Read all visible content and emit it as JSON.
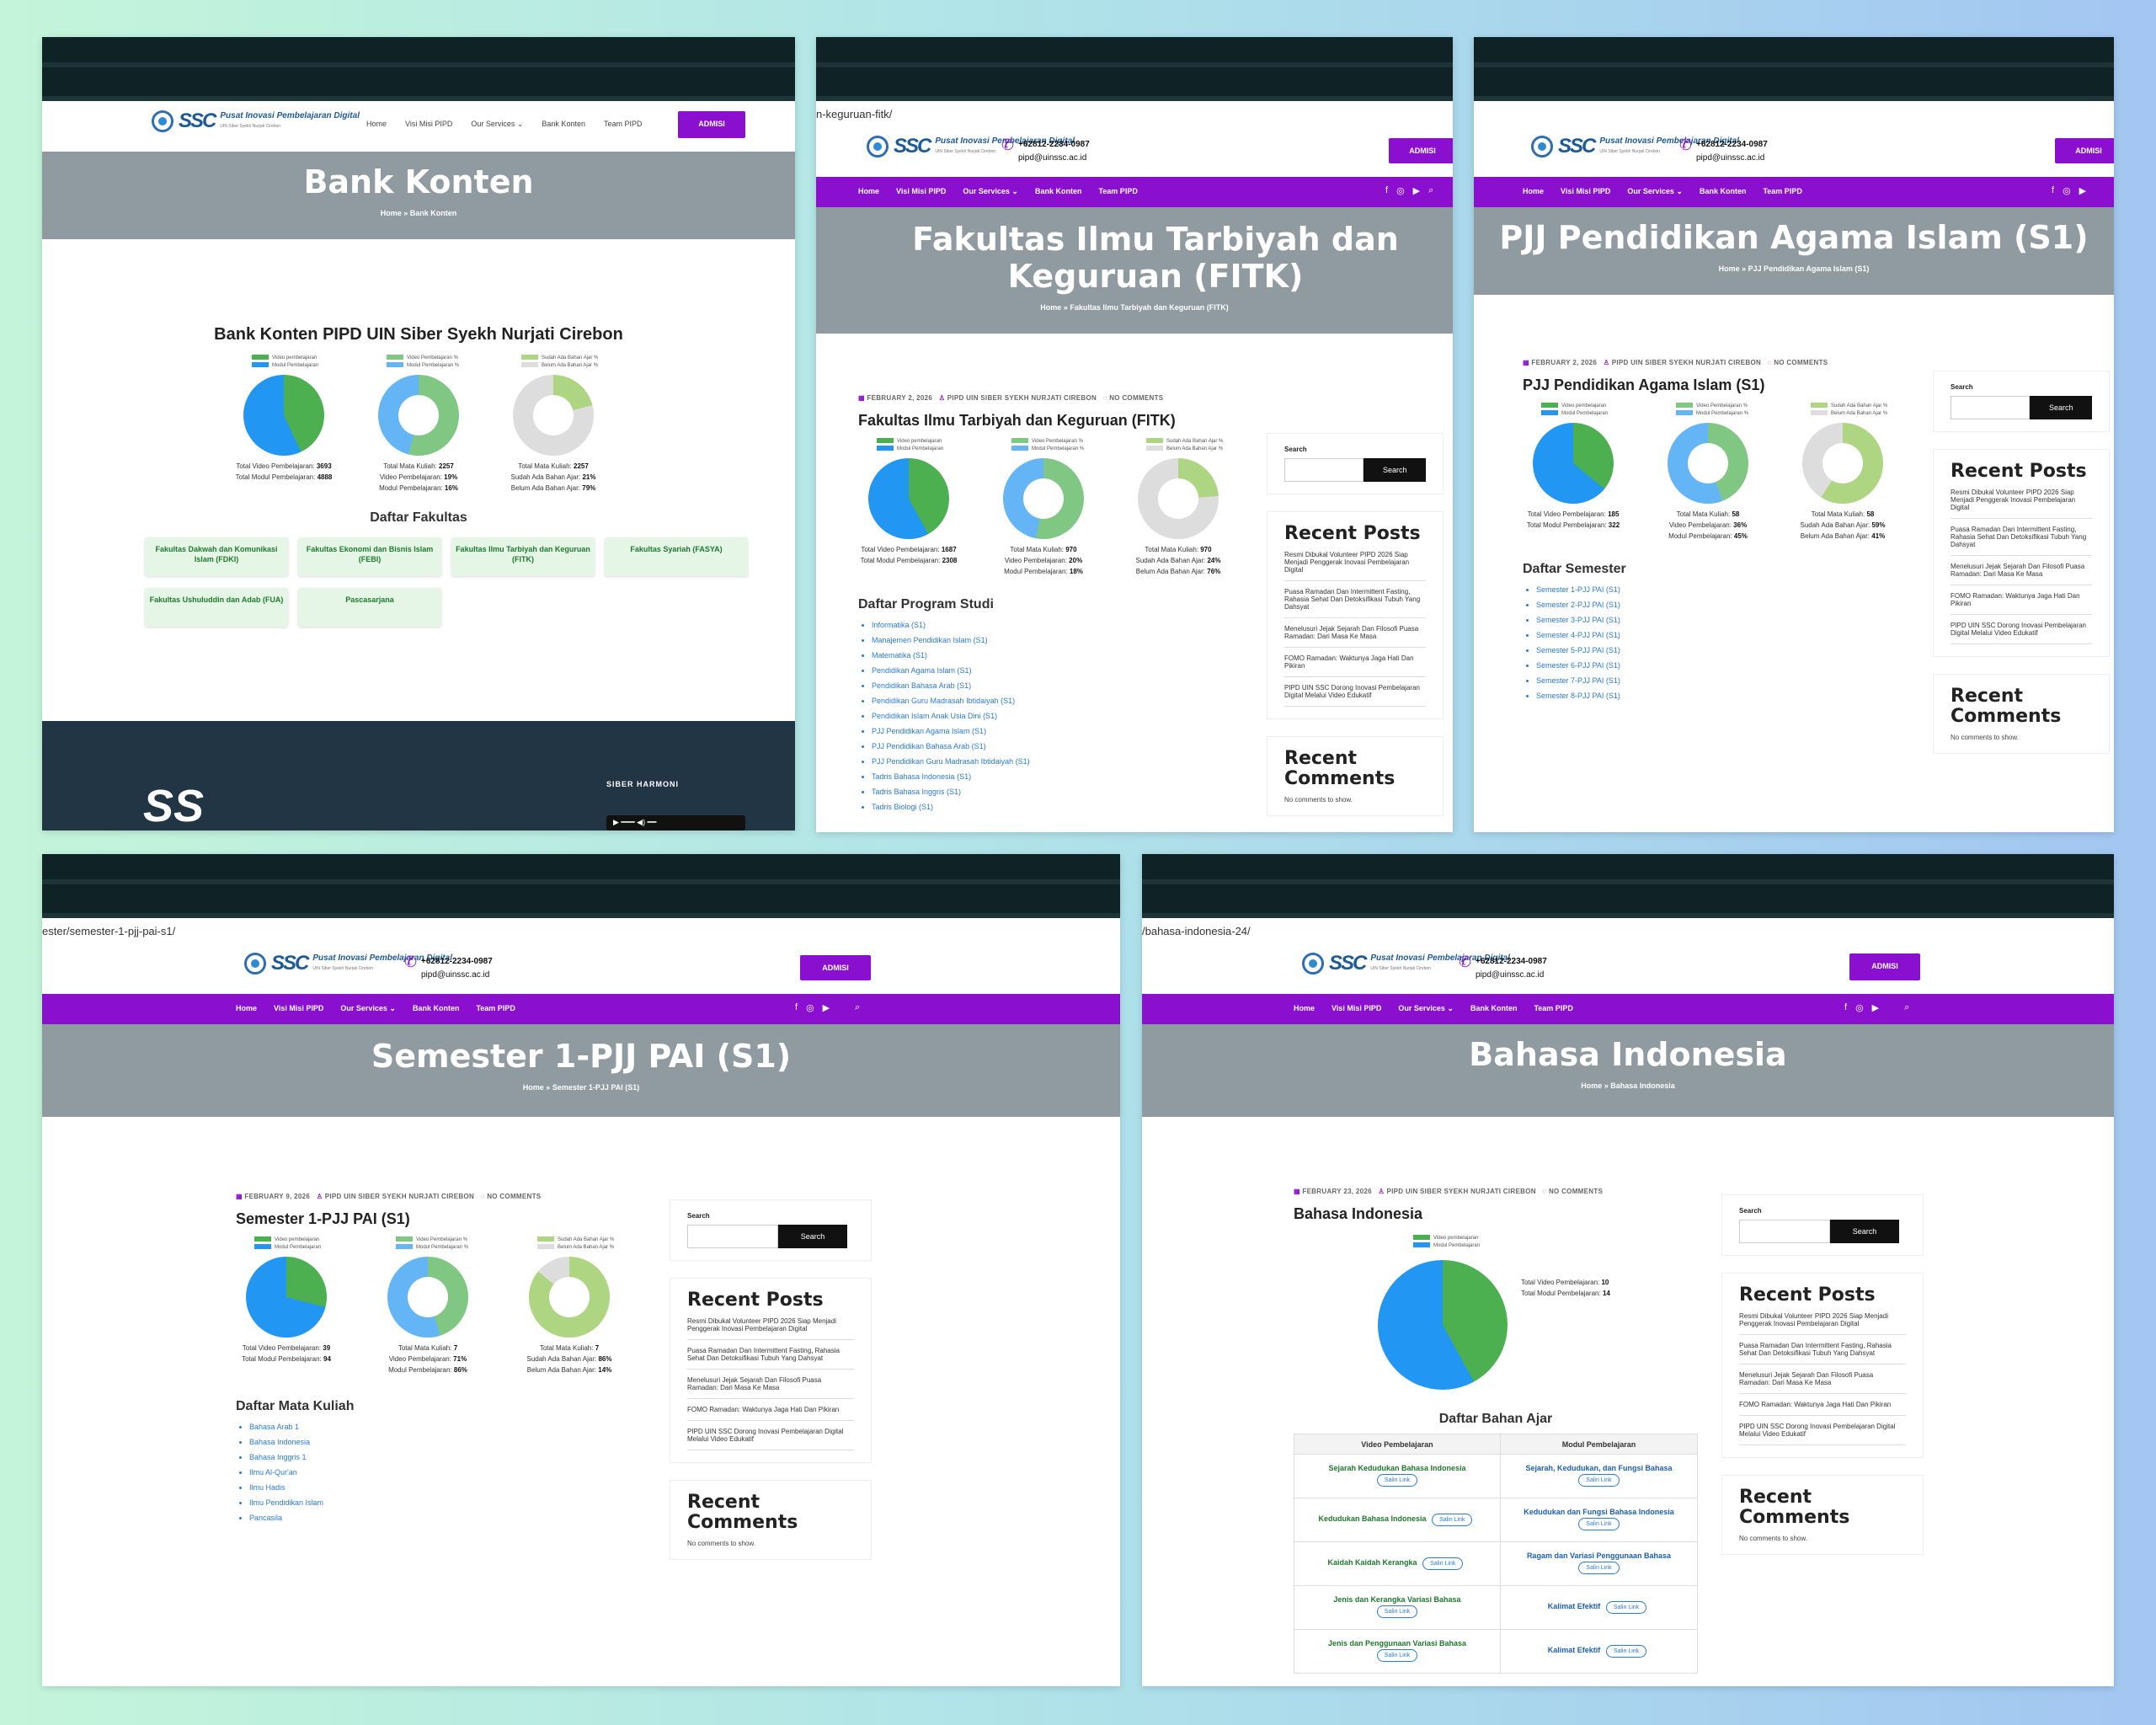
{
  "common": {
    "logo_title": "Pusat Inovasi Pembelajaran Digital",
    "logo_tag": "UIN Siber Syekh Nurjati Cirebon",
    "logo_sub": "UINSSC",
    "phone": "+62812-2234-0987",
    "email": "pipd@uinssc.ac.id",
    "admisi": "ADMISI",
    "nav": [
      "Home",
      "Visi Misi PIPD",
      "Our Services ⌄",
      "Bank Konten",
      "Team PIPD"
    ],
    "social": [
      "f",
      "◎",
      "▶",
      "⌕"
    ],
    "home": "Home",
    "sep": "»",
    "legend_video": "Video pembelajaran",
    "legend_modul": "Modul Pembelajaran",
    "legend_video_pct": "Video Pembelajaran %",
    "legend_modul_pct": "Modul Pembelajaran %",
    "legend_sudah": "Sudah Ada Bahan Ajar %",
    "legend_belum": "Belum Ada Bahan Ajar %",
    "lbl_total_video": "Total Video Pembelajaran:",
    "lbl_total_modul": "Total Modul Pembelajaran:",
    "lbl_total_mk": "Total Mata Kuliah:",
    "lbl_video_pct": "Video Pembelajaran:",
    "lbl_modul_pct": "Modul Pembelajaran:",
    "lbl_sudah": "Sudah Ada Bahan Ajar:",
    "lbl_belum": "Belum Ada Bahan Ajar:",
    "author": "PIPD UIN SIBER SYEKH NURJATI CIREBON",
    "no_comments": "NO COMMENTS",
    "search_label": "Search",
    "search_btn": "Search",
    "recent_posts": "Recent Posts",
    "recent_comments": "Recent Comments",
    "no_comments_show": "No comments to show.",
    "posts": [
      "Resmi Dibukal Volunteer PIPD 2026 Siap Menjadi Penggerak Inovasi Pembelajaran Digital",
      "Puasa Ramadan Dan Intermittent Fasting, Rahasia Sehat Dan Detoksifikasi Tubuh Yang Dahsyat",
      "Menelusuri Jejak Sejarah Dan Filosofi Puasa Ramadan: Dari Masa Ke Masa",
      "FOMO Ramadan: Waktunya Jaga Hati Dan Pikiran",
      "PIPD UIN SSC Dorong Inovasi Pembelajaran Digital Melalui Video Edukatif"
    ]
  },
  "p1": {
    "title": "Bank Konten",
    "crumb_current": "Bank Konten",
    "heading": "Bank Konten PIPD UIN Siber Syekh Nurjati Cirebon",
    "v1": "3693",
    "v2": "4888",
    "v3": "2257",
    "v4": "19%",
    "v5": "16%",
    "v6": "2257",
    "v7": "21%",
    "v8": "79%",
    "fakultas_h": "Daftar Fakultas",
    "fakultas": [
      "Fakultas Dakwah dan Komunikasi Islam (FDKI)",
      "Fakultas Ekonomi dan Bisnis Islam (FEBI)",
      "Fakultas Ilmu Tarbiyah dan Keguruan (FITK)",
      "Fakultas Syariah (FASYA)",
      "Fakultas Ushuluddin dan Adab (FUA)",
      "Pascasarjana"
    ],
    "footer_label": "SIBER HARMONI"
  },
  "p2": {
    "url": "n-keguruan-fitk/",
    "title": "Fakultas Ilmu Tarbiyah dan Keguruan (FITK)",
    "date": "FEBRUARY 2, 2026",
    "v1": "1687",
    "v2": "2308",
    "v3": "970",
    "v4": "20%",
    "v5": "18%",
    "v6": "970",
    "v7": "24%",
    "v8": "76%",
    "list_h": "Daftar Program Studi",
    "list": [
      "Informatika (S1)",
      "Manajemen Pendidikan Islam (S1)",
      "Matematika (S1)",
      "Pendidikan Agama Islam (S1)",
      "Pendidikan Bahasa Arab (S1)",
      "Pendidikan Guru Madrasah Ibtidaiyah (S1)",
      "Pendidikan Islam Anak Usia Dini (S1)",
      "PJJ Pendidikan Agama Islam (S1)",
      "PJJ Pendidikan Bahasa Arab (S1)",
      "PJJ Pendidikan Guru Madrasah Ibtidaiyah (S1)",
      "Tadris Bahasa Indonesia (S1)",
      "Tadris Bahasa Inggris (S1)",
      "Tadris Biologi (S1)"
    ]
  },
  "p3": {
    "title": "PJJ Pendidikan Agama Islam (S1)",
    "date": "FEBRUARY 2, 2026",
    "v1": "185",
    "v2": "322",
    "v3": "58",
    "v4": "36%",
    "v5": "45%",
    "v6": "58",
    "v7": "59%",
    "v8": "41%",
    "list_h": "Daftar Semester",
    "list": [
      "Semester 1-PJJ PAI (S1)",
      "Semester 2-PJJ PAI (S1)",
      "Semester 3-PJJ PAI (S1)",
      "Semester 4-PJJ PAI (S1)",
      "Semester 5-PJJ PAI (S1)",
      "Semester 6-PJJ PAI (S1)",
      "Semester 7-PJJ PAI (S1)",
      "Semester 8-PJJ PAI (S1)"
    ]
  },
  "p4": {
    "url": "ester/semester-1-pjj-pai-s1/",
    "title": "Semester 1-PJJ PAI (S1)",
    "date": "FEBRUARY 9, 2026",
    "v1": "39",
    "v2": "94",
    "v3": "7",
    "v4": "71%",
    "v5": "86%",
    "v6": "7",
    "v7": "86%",
    "v8": "14%",
    "list_h": "Daftar Mata Kuliah",
    "list": [
      "Bahasa Arab 1",
      "Bahasa Indonesia",
      "Bahasa Inggris 1",
      "Ilmu Al-Qur'an",
      "Ilmu Hadis",
      "Ilmu Pendidikan Islam",
      "Pancasila"
    ]
  },
  "p5": {
    "url": "/bahasa-indonesia-24/",
    "title": "Bahasa Indonesia",
    "date": "FEBRUARY 23, 2026",
    "v1": "10",
    "v2": "14",
    "bahan_h": "Daftar Bahan Ajar",
    "col_video": "Video Pembelajaran",
    "col_modul": "Modul Pembelajaran",
    "salin": "Salin Link",
    "rows": [
      [
        "Sejarah Kedudukan Bahasa Indonesia",
        "Sejarah, Kedudukan, dan Fungsi Bahasa"
      ],
      [
        "Kedudukan Bahasa Indonesia",
        "Kedudukan dan Fungsi Bahasa Indonesia"
      ],
      [
        "Kaidah Kaidah Kerangka",
        "Ragam dan Variasi Penggunaan Bahasa"
      ],
      [
        "Jenis dan Kerangka Variasi Bahasa",
        "Kalimat Efektif"
      ],
      [
        "Jenis dan Penggunaan Variasi Bahasa",
        "Kalimat Efektif"
      ]
    ]
  }
}
